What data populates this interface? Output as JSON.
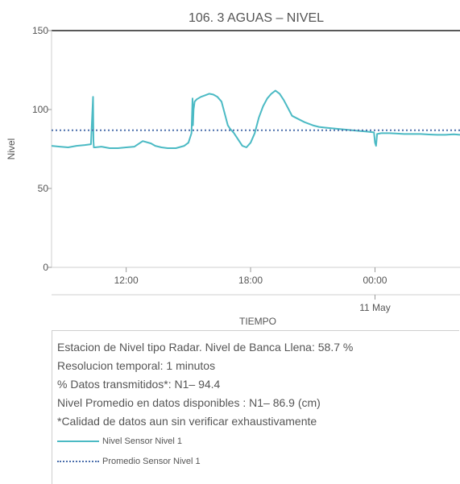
{
  "chart_data": {
    "type": "line",
    "title": "106. 3 AGUAS – NIVEL",
    "xlabel": "TIEMPO",
    "ylabel": "Nivel",
    "x_unit": "hours since midnight 10 May (24 = 00:00 11 May)",
    "xlim": [
      8.4,
      28.1
    ],
    "ylim": [
      0,
      150
    ],
    "y_ticks": [
      0,
      50,
      100,
      150
    ],
    "x_ticks": [
      {
        "x": 12,
        "label": "12:00"
      },
      {
        "x": 18,
        "label": "18:00"
      },
      {
        "x": 24,
        "label": "00:00"
      }
    ],
    "secondary_label": {
      "x": 24,
      "label": "11 May"
    },
    "grid": false,
    "series": [
      {
        "name": "Nivel Sensor Nivel 1",
        "color": "#4bbac4",
        "style": "solid",
        "x": [
          8.4,
          8.8,
          9.2,
          9.6,
          10.0,
          10.3,
          10.4,
          10.42,
          10.44,
          10.5,
          10.8,
          11.2,
          11.6,
          12.0,
          12.4,
          12.8,
          13.2,
          13.4,
          13.7,
          14.0,
          14.4,
          14.8,
          15.0,
          15.15,
          15.2,
          15.22,
          15.25,
          15.3,
          15.4,
          15.6,
          15.8,
          16.0,
          16.2,
          16.4,
          16.6,
          16.8,
          16.9,
          17.0,
          17.2,
          17.4,
          17.6,
          17.8,
          18.0,
          18.2,
          18.4,
          18.6,
          18.8,
          19.0,
          19.2,
          19.4,
          19.6,
          19.8,
          20.0,
          20.3,
          20.6,
          21.0,
          21.3,
          21.6,
          22.0,
          22.4,
          22.8,
          23.2,
          23.6,
          23.95,
          24.0,
          24.05,
          24.1,
          24.3,
          24.7,
          25.0,
          25.4,
          25.8,
          26.2,
          26.6,
          27.0,
          27.4,
          27.8,
          28.1
        ],
        "y": [
          77,
          76.5,
          76,
          77,
          77.5,
          78,
          108,
          80,
          76,
          76,
          76.5,
          75.5,
          75.5,
          76,
          76.5,
          80,
          78.5,
          77,
          76,
          75.5,
          75.5,
          77,
          79,
          85,
          107,
          90,
          100,
          105,
          106.5,
          108,
          109,
          110,
          109.5,
          108,
          105,
          95,
          90,
          88,
          85,
          81,
          77,
          76,
          79,
          85,
          95,
          102,
          107,
          110,
          112,
          110,
          106,
          101,
          96,
          94,
          92,
          90,
          89,
          88.5,
          88,
          87.5,
          87,
          86.5,
          86,
          85.5,
          79,
          77,
          84.5,
          85,
          85,
          84.8,
          84.5,
          84.5,
          84.5,
          84.2,
          84,
          84,
          84.3,
          84
        ]
      },
      {
        "name": "Promedio Sensor Nivel 1",
        "color": "#4a6eab",
        "style": "dotted",
        "x": [
          8.4,
          28.1
        ],
        "y": [
          86.9,
          86.9
        ]
      }
    ]
  },
  "info": {
    "line1": "Estacion de Nivel tipo Radar. Nivel de Banca Llena: 58.7 %",
    "line2": "Resolucion temporal: 1 minutos",
    "line3": "% Datos transmitidos*: N1– 94.4",
    "line4": "Nivel Promedio en datos disponibles : N1– 86.9 (cm)",
    "line5": "*Calidad de datos aun sin verificar exhaustivamente"
  },
  "legend": {
    "item1": {
      "label": "Nivel Sensor Nivel 1",
      "icon": "solid-line-swatch"
    },
    "item2": {
      "label": "Promedio Sensor Nivel 1",
      "icon": "dotted-line-swatch"
    }
  }
}
